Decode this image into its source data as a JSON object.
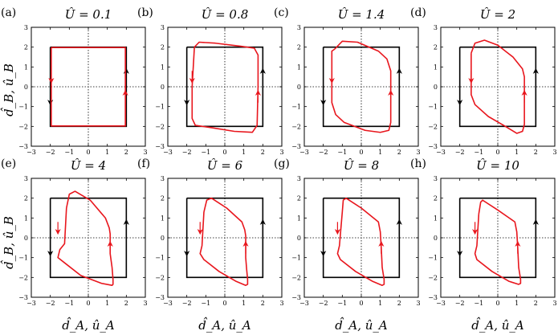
{
  "axis_label_x": "d̂_A, û_A",
  "axis_label_y": "d̂_B, û_B",
  "colors": {
    "trajectory": "#e8161d",
    "square": "#000000",
    "guide": "#000000"
  },
  "chart_data": [
    {
      "type": "line",
      "panel_label": "(a)",
      "title": "Û = 0.1",
      "xlim": [
        -3,
        3
      ],
      "ylim": [
        -3,
        3
      ],
      "xticks": [
        -3,
        -2,
        -1,
        0,
        1,
        2,
        3
      ],
      "yticks": [
        -3,
        -2,
        -1,
        0,
        1,
        2,
        3
      ],
      "reference_square": {
        "x": [
          -2,
          2,
          2,
          -2,
          -2
        ],
        "y": [
          2,
          2,
          -2,
          -2,
          2
        ]
      },
      "series": [
        {
          "x": [
            -1.95,
            1.95,
            1.95,
            -1.95,
            -1.95
          ],
          "y": [
            1.98,
            1.98,
            -1.98,
            -1.98,
            1.98
          ]
        }
      ]
    },
    {
      "type": "line",
      "panel_label": "(b)",
      "title": "Û = 0.8",
      "xlim": [
        -3,
        3
      ],
      "ylim": [
        -3,
        3
      ],
      "xticks": [
        -3,
        -2,
        -1,
        0,
        1,
        2,
        3
      ],
      "yticks": [
        -3,
        -2,
        -1,
        0,
        1,
        2,
        3
      ],
      "reference_square": {
        "x": [
          -2,
          2,
          2,
          -2,
          -2
        ],
        "y": [
          2,
          2,
          -2,
          -2,
          2
        ]
      },
      "series": [
        {
          "x": [
            -1.6,
            -1.35,
            -0.5,
            0.8,
            1.55,
            1.75,
            1.75,
            1.7,
            1.45,
            0.5,
            -0.8,
            -1.55,
            -1.72,
            -1.72,
            -1.6
          ],
          "y": [
            2.0,
            2.25,
            2.2,
            2.05,
            1.95,
            1.6,
            0,
            -1.95,
            -2.3,
            -2.25,
            -2.05,
            -1.95,
            -1.6,
            0,
            2.0
          ]
        }
      ]
    },
    {
      "type": "line",
      "panel_label": "(c)",
      "title": "Û = 1.4",
      "xlim": [
        -3,
        3
      ],
      "ylim": [
        -3,
        3
      ],
      "xticks": [
        -3,
        -2,
        -1,
        0,
        1,
        2,
        3
      ],
      "yticks": [
        -3,
        -2,
        -1,
        0,
        1,
        2,
        3
      ],
      "reference_square": {
        "x": [
          -2,
          2,
          2,
          -2,
          -2
        ],
        "y": [
          2,
          2,
          -2,
          -2,
          2
        ]
      },
      "series": [
        {
          "x": [
            -1.4,
            -1.0,
            -0.2,
            0.9,
            1.35,
            1.55,
            1.55,
            1.45,
            1.0,
            0.2,
            -0.9,
            -1.35,
            -1.55,
            -1.55,
            -1.4
          ],
          "y": [
            1.9,
            2.3,
            2.25,
            1.8,
            1.4,
            0.8,
            -1.8,
            -2.2,
            -2.3,
            -2.2,
            -1.8,
            -1.4,
            -0.8,
            1.8,
            1.9
          ]
        }
      ]
    },
    {
      "type": "line",
      "panel_label": "(d)",
      "title": "Û = 2",
      "xlim": [
        -3,
        3
      ],
      "ylim": [
        -3,
        3
      ],
      "xticks": [
        -3,
        -2,
        -1,
        0,
        1,
        2,
        3
      ],
      "yticks": [
        -3,
        -2,
        -1,
        0,
        1,
        2,
        3
      ],
      "reference_square": {
        "x": [
          -2,
          2,
          2,
          -2,
          -2
        ],
        "y": [
          2,
          2,
          -2,
          -2,
          2
        ]
      },
      "series": [
        {
          "x": [
            -1.4,
            -1.2,
            -0.7,
            0,
            0.8,
            1.3,
            1.4,
            1.4,
            1.3,
            1.0,
            0.4,
            -0.5,
            -1.2,
            -1.4,
            -1.4
          ],
          "y": [
            1.7,
            2.2,
            2.35,
            2.1,
            1.5,
            0.9,
            0.5,
            -1.9,
            -2.25,
            -2.35,
            -2.0,
            -1.5,
            -0.9,
            -0.4,
            1.7
          ]
        }
      ]
    },
    {
      "type": "line",
      "panel_label": "(e)",
      "title": "Û = 4",
      "xlim": [
        -3,
        3
      ],
      "ylim": [
        -3,
        3
      ],
      "xticks": [
        -3,
        -2,
        -1,
        0,
        1,
        2,
        3
      ],
      "yticks": [
        -3,
        -2,
        -1,
        0,
        1,
        2,
        3
      ],
      "reference_square": {
        "x": [
          -2,
          2,
          2,
          -2,
          -2
        ],
        "y": [
          2,
          2,
          -2,
          -2,
          2
        ]
      },
      "series": [
        {
          "x": [
            -1.15,
            -1.0,
            -0.7,
            0.1,
            0.9,
            1.1,
            1.15,
            1.15,
            1.25,
            1.3,
            1.3,
            1.25,
            0.7,
            -0.4,
            -1.2,
            -1.6,
            -1.5,
            -1.25,
            -1.15
          ],
          "y": [
            1.5,
            2.2,
            2.35,
            1.9,
            1.0,
            0.5,
            0.2,
            -0.8,
            -1.5,
            -2.1,
            -2.35,
            -2.4,
            -2.3,
            -1.9,
            -1.3,
            -1.0,
            -0.6,
            -0.3,
            1.5
          ]
        }
      ]
    },
    {
      "type": "line",
      "panel_label": "(f)",
      "title": "Û = 6",
      "xlim": [
        -3,
        3
      ],
      "ylim": [
        -3,
        3
      ],
      "xticks": [
        -3,
        -2,
        -1,
        0,
        1,
        2,
        3
      ],
      "yticks": [
        -3,
        -2,
        -1,
        0,
        1,
        2,
        3
      ],
      "reference_square": {
        "x": [
          -2,
          2,
          2,
          -2,
          -2
        ],
        "y": [
          2,
          2,
          -2,
          -2,
          2
        ]
      },
      "series": [
        {
          "x": [
            -1.1,
            -0.95,
            -0.7,
            0.1,
            0.9,
            1.05,
            1.1,
            1.1,
            1.15,
            1.2,
            1.2,
            1.1,
            0.6,
            -0.3,
            -1.1,
            -1.3,
            -1.2,
            -1.1
          ],
          "y": [
            1.3,
            1.9,
            2.0,
            1.5,
            0.8,
            0.4,
            0.1,
            -1.0,
            -1.6,
            -2.1,
            -2.35,
            -2.4,
            -2.2,
            -1.7,
            -1.1,
            -0.8,
            -0.4,
            1.3
          ]
        }
      ]
    },
    {
      "type": "line",
      "panel_label": "(g)",
      "title": "Û = 8",
      "xlim": [
        -3,
        3
      ],
      "ylim": [
        -3,
        3
      ],
      "xticks": [
        -3,
        -2,
        -1,
        0,
        1,
        2,
        3
      ],
      "yticks": [
        -3,
        -2,
        -1,
        0,
        1,
        2,
        3
      ],
      "reference_square": {
        "x": [
          -2,
          2,
          2,
          -2,
          -2
        ],
        "y": [
          2,
          2,
          -2,
          -2,
          2
        ]
      },
      "series": [
        {
          "x": [
            -1.0,
            -0.95,
            -0.8,
            0,
            0.9,
            1.0,
            1.05,
            1.1,
            1.2,
            1.2,
            1.1,
            0.6,
            -0.3,
            -1.1,
            -1.25,
            -1.15,
            -1.0
          ],
          "y": [
            1.3,
            1.9,
            2.0,
            1.5,
            0.8,
            0.3,
            -0.5,
            -1.5,
            -2.1,
            -2.35,
            -2.4,
            -2.2,
            -1.7,
            -1.1,
            -0.8,
            -0.4,
            1.3
          ]
        }
      ]
    },
    {
      "type": "line",
      "panel_label": "(h)",
      "title": "Û = 10",
      "xlim": [
        -3,
        3
      ],
      "ylim": [
        -3,
        3
      ],
      "xticks": [
        -3,
        -2,
        -1,
        0,
        1,
        2,
        3
      ],
      "yticks": [
        -3,
        -2,
        -1,
        0,
        1,
        2,
        3
      ],
      "reference_square": {
        "x": [
          -2,
          2,
          2,
          -2,
          -2
        ],
        "y": [
          2,
          2,
          -2,
          -2,
          2
        ]
      },
      "series": [
        {
          "x": [
            -1.0,
            -0.9,
            -0.8,
            0,
            0.9,
            1.0,
            1.05,
            1.1,
            1.2,
            1.2,
            1.1,
            0.6,
            -0.3,
            -1.1,
            -1.2,
            -1.1,
            -1.0
          ],
          "y": [
            1.2,
            1.8,
            1.9,
            1.4,
            0.8,
            0.3,
            -0.5,
            -1.5,
            -2.1,
            -2.3,
            -2.35,
            -2.2,
            -1.7,
            -1.1,
            -0.8,
            -0.4,
            1.2
          ]
        }
      ]
    }
  ]
}
